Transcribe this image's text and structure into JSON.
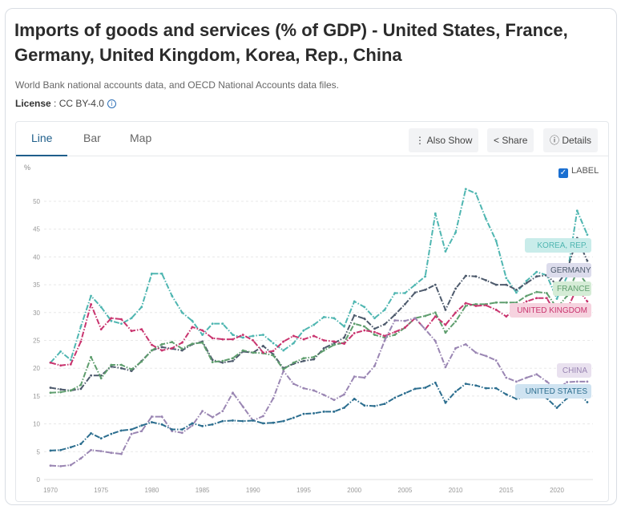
{
  "header": {
    "title": "Imports of goods and services (% of GDP) - United States, France, Germany, United Kingdom, Korea, Rep., China",
    "source": "World Bank national accounts data, and OECD National Accounts data files.",
    "license_label": "License",
    "license_value": ": CC BY-4.0",
    "info_icon": "i"
  },
  "tabs": [
    {
      "label": "Line"
    },
    {
      "label": "Bar"
    },
    {
      "label": "Map"
    }
  ],
  "buttons": {
    "also_show": "Also Show",
    "share": "Share",
    "details": "Details"
  },
  "label_toggle": {
    "label": "LABEL",
    "checked": true
  },
  "chart_data": {
    "type": "line",
    "title": "Imports of goods and services (% of GDP)",
    "ylabel": "%",
    "xlabel": "",
    "ylim": [
      0,
      50
    ],
    "xlim": [
      1970,
      2023
    ],
    "yticks": [
      0,
      5,
      10,
      15,
      20,
      25,
      30,
      35,
      40,
      45,
      50
    ],
    "xticks": [
      1970,
      1975,
      1980,
      1985,
      1990,
      1995,
      2000,
      2005,
      2010,
      2015,
      2020
    ],
    "grid": true,
    "legend": "inline-right",
    "x_start": 1970,
    "series": [
      {
        "name": "KOREA, REP.",
        "color": "#4fb6b1",
        "bg": "#c9ecea",
        "values": [
          21,
          23,
          21.5,
          27.5,
          33,
          31,
          28.5,
          28,
          29,
          31,
          37,
          37,
          33,
          30,
          28.5,
          26,
          28,
          28,
          26,
          25.5,
          25.8,
          26,
          24.5,
          23.2,
          24.5,
          26.8,
          27.8,
          29.2,
          29,
          27.5,
          32,
          31,
          29,
          30.5,
          33.5,
          33.5,
          35,
          36.5,
          47.8,
          41,
          44.4,
          52.2,
          51.4,
          46.8,
          42.9,
          36.2,
          33.6,
          35.7,
          37.3,
          36.7,
          32.5,
          36.5,
          48.3,
          44
        ]
      },
      {
        "name": "GERMANY",
        "color": "#4d5a6c",
        "bg": "#dcdcec",
        "values": [
          16.5,
          16.2,
          16,
          16.3,
          18.7,
          18.7,
          20.3,
          20,
          19.5,
          21.3,
          23.2,
          23.8,
          23.5,
          23.2,
          24.3,
          24.8,
          21.5,
          21,
          21.3,
          23,
          22.8,
          24,
          22.5,
          20,
          20.8,
          21.3,
          21.6,
          23.6,
          24.5,
          25.5,
          29.5,
          28.9,
          27.1,
          27.9,
          29.6,
          31.5,
          33.6,
          34.1,
          35,
          30.5,
          34.3,
          36.6,
          36.5,
          35.8,
          35,
          35,
          34.1,
          35.3,
          36.5,
          36.7,
          35,
          37.5,
          43.4,
          39.3
        ]
      },
      {
        "name": "FRANCE",
        "color": "#5f9e6e",
        "bg": "#d5ecd6",
        "values": [
          15.6,
          15.7,
          16,
          17,
          22,
          18.2,
          20.6,
          20.6,
          19.8,
          21.2,
          23.2,
          24.3,
          24.7,
          23.5,
          24.4,
          24.6,
          21.1,
          21.3,
          21.8,
          23.2,
          22.8,
          22.7,
          22.3,
          19.8,
          21,
          21.8,
          22,
          23.2,
          24.2,
          24.6,
          28,
          27.5,
          26,
          25.5,
          26,
          27.3,
          29,
          29.4,
          30,
          26.4,
          28.4,
          31.2,
          31.5,
          31.5,
          31.8,
          31.8,
          31.8,
          33,
          33.7,
          33.5,
          30.8,
          33,
          37.5,
          35
        ]
      },
      {
        "name": "UNITED KINGDOM",
        "color": "#c9356f",
        "bg": "#f6d3df",
        "values": [
          21,
          20.5,
          20.7,
          24.8,
          31.5,
          27,
          29,
          28.8,
          26.7,
          27,
          24.2,
          23.2,
          23.6,
          24.6,
          27.4,
          26.8,
          25.4,
          25.2,
          25.2,
          26,
          25,
          22.8,
          23.1,
          24.8,
          25.8,
          25.2,
          25.8,
          25,
          24.8,
          24.4,
          26.3,
          26.8,
          26.5,
          25.8,
          26.5,
          27.3,
          29,
          27,
          29.3,
          27.8,
          30,
          31.7,
          31.2,
          31.3,
          30.5,
          29.3,
          30.8,
          32,
          32.6,
          32.6,
          29.5,
          30.5,
          34.5,
          32
        ]
      },
      {
        "name": "CHINA",
        "color": "#9a86b3",
        "bg": "#e9e1ef",
        "values": [
          2.5,
          2.4,
          2.6,
          3.8,
          5.3,
          5.1,
          4.8,
          4.6,
          8.2,
          8.7,
          11.3,
          11.3,
          8.7,
          8.4,
          9.7,
          12.3,
          11.2,
          12.3,
          15.6,
          13.1,
          10.6,
          11.4,
          14.6,
          19.5,
          17.2,
          16.4,
          16,
          15.2,
          14.3,
          15.3,
          18.5,
          18.3,
          20.4,
          25,
          28.6,
          28.5,
          29,
          27,
          24.9,
          20.2,
          23.6,
          24.3,
          22.8,
          22.2,
          21.4,
          18.3,
          17.6,
          18.3,
          18.9,
          17.6,
          16.2,
          17.5,
          17.6,
          17.6
        ]
      },
      {
        "name": "UNITED STATES",
        "color": "#2c6e8f",
        "bg": "#cfe3f1",
        "values": [
          5.2,
          5.3,
          5.8,
          6.4,
          8.3,
          7.4,
          8.2,
          8.8,
          9,
          9.7,
          10.3,
          9.9,
          9,
          9,
          10.1,
          9.6,
          9.9,
          10.5,
          10.6,
          10.5,
          10.6,
          10.1,
          10.2,
          10.5,
          11.1,
          11.8,
          11.9,
          12.2,
          12.2,
          12.9,
          14.5,
          13.3,
          13.2,
          13.6,
          14.7,
          15.5,
          16.3,
          16.5,
          17.4,
          13.8,
          15.8,
          17.2,
          16.9,
          16.4,
          16.4,
          15.3,
          14.5,
          14.8,
          15.3,
          14.6,
          12.9,
          14.6,
          15.8,
          13.9
        ]
      }
    ]
  }
}
